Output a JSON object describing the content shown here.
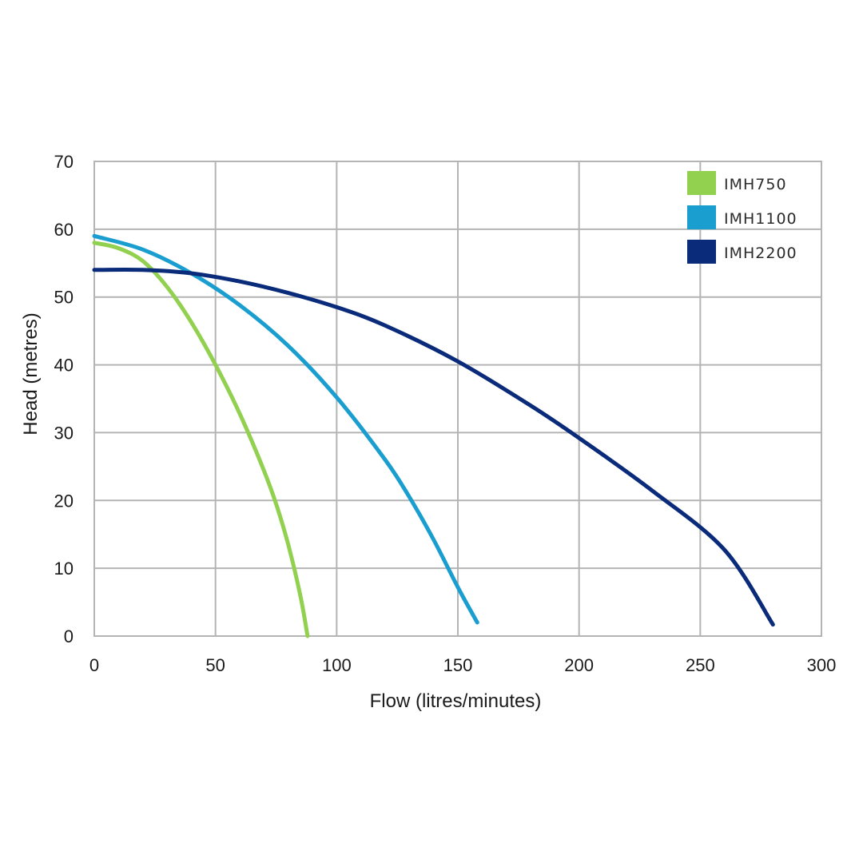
{
  "chart_data": {
    "type": "line",
    "title": "",
    "xlabel": "Flow (litres/minutes)",
    "ylabel": "Head (metres)",
    "xlim": [
      0,
      300
    ],
    "ylim": [
      0,
      70
    ],
    "xticks": [
      0,
      50,
      100,
      150,
      200,
      250,
      300
    ],
    "yticks": [
      0,
      10,
      20,
      30,
      40,
      50,
      60,
      70
    ],
    "x_tick_labels": [
      "0",
      "50",
      "100",
      "150",
      "200",
      "250",
      "300"
    ],
    "y_tick_labels": [
      "0",
      "10",
      "20",
      "30",
      "40",
      "50",
      "60",
      "70"
    ],
    "grid": true,
    "legend_position": "top-right",
    "series": [
      {
        "name": "IMH750",
        "color": "#92d050",
        "points": [
          [
            0,
            58
          ],
          [
            10,
            57.2
          ],
          [
            20,
            55.3
          ],
          [
            30,
            51.5
          ],
          [
            40,
            46.3
          ],
          [
            50,
            40
          ],
          [
            60,
            32.8
          ],
          [
            70,
            24.4
          ],
          [
            75,
            19.5
          ],
          [
            80,
            13.5
          ],
          [
            85,
            6
          ],
          [
            88,
            0
          ]
        ]
      },
      {
        "name": "IMH1100",
        "color": "#1a9ed0",
        "points": [
          [
            0,
            59
          ],
          [
            20,
            57
          ],
          [
            40,
            53.5
          ],
          [
            60,
            48.8
          ],
          [
            80,
            42.8
          ],
          [
            100,
            35.2
          ],
          [
            120,
            26
          ],
          [
            130,
            20.5
          ],
          [
            140,
            14.2
          ],
          [
            150,
            7.2
          ],
          [
            158,
            2
          ]
        ]
      },
      {
        "name": "IMH2200",
        "color": "#0a2a7a",
        "points": [
          [
            0,
            54
          ],
          [
            20,
            54
          ],
          [
            40,
            53.5
          ],
          [
            60,
            52.3
          ],
          [
            80,
            50.6
          ],
          [
            100,
            48.5
          ],
          [
            120,
            45.8
          ],
          [
            150,
            40.5
          ],
          [
            180,
            34
          ],
          [
            200,
            29.2
          ],
          [
            230,
            21.5
          ],
          [
            260,
            12.7
          ],
          [
            280,
            1.7
          ]
        ]
      }
    ]
  }
}
